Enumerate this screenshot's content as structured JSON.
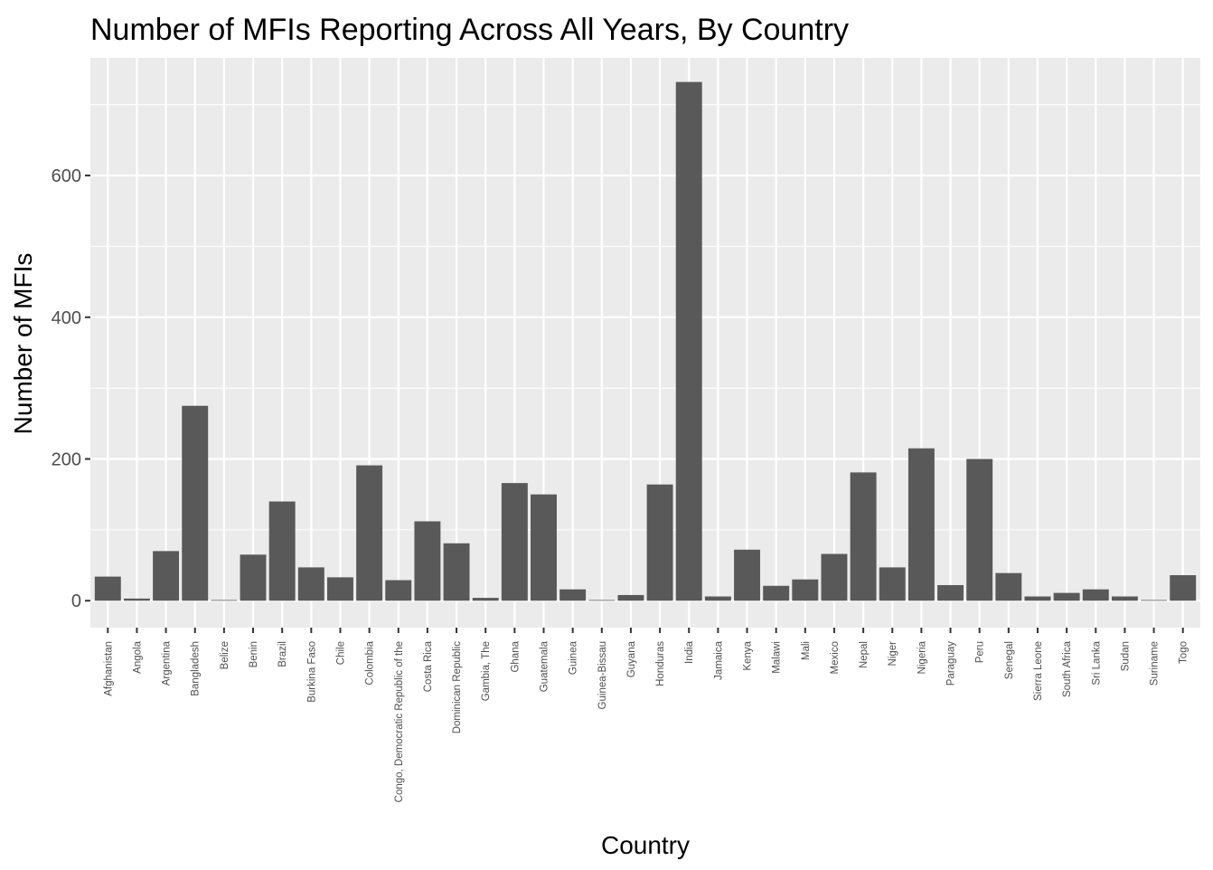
{
  "chart_data": {
    "type": "bar",
    "title": "Number of MFIs Reporting Across All Years, By Country",
    "xlabel": "Country",
    "ylabel": "Number of MFIs",
    "ylim": [
      -38,
      766
    ],
    "yticks": [
      0,
      200,
      400,
      600
    ],
    "grid": true,
    "legend": "none",
    "colors": {
      "bar": "#595959",
      "panel": "#ebebeb",
      "grid": "#ffffff",
      "tick_text": "#4d4d4d"
    },
    "categories": [
      "Afghanistan",
      "Angola",
      "Argentina",
      "Bangladesh",
      "Belize",
      "Benin",
      "Brazil",
      "Burkina Faso",
      "Chile",
      "Colombia",
      "Congo, Democratic Republic of the",
      "Costa Rica",
      "Dominican Republic",
      "Gambia, The",
      "Ghana",
      "Guatemala",
      "Guinea",
      "Guinea-Bissau",
      "Guyana",
      "Honduras",
      "India",
      "Jamaica",
      "Kenya",
      "Malawi",
      "Mali",
      "Mexico",
      "Nepal",
      "Niger",
      "Nigeria",
      "Paraguay",
      "Peru",
      "Senegal",
      "Sierra Leone",
      "South Africa",
      "Sri Lanka",
      "Sudan",
      "Suriname",
      "Togo"
    ],
    "values": [
      34,
      3,
      70,
      275,
      1,
      65,
      140,
      47,
      33,
      191,
      29,
      112,
      81,
      4,
      166,
      150,
      16,
      1,
      8,
      164,
      732,
      6,
      72,
      21,
      30,
      66,
      181,
      47,
      215,
      22,
      200,
      39,
      6,
      11,
      16,
      6,
      1,
      36
    ]
  }
}
